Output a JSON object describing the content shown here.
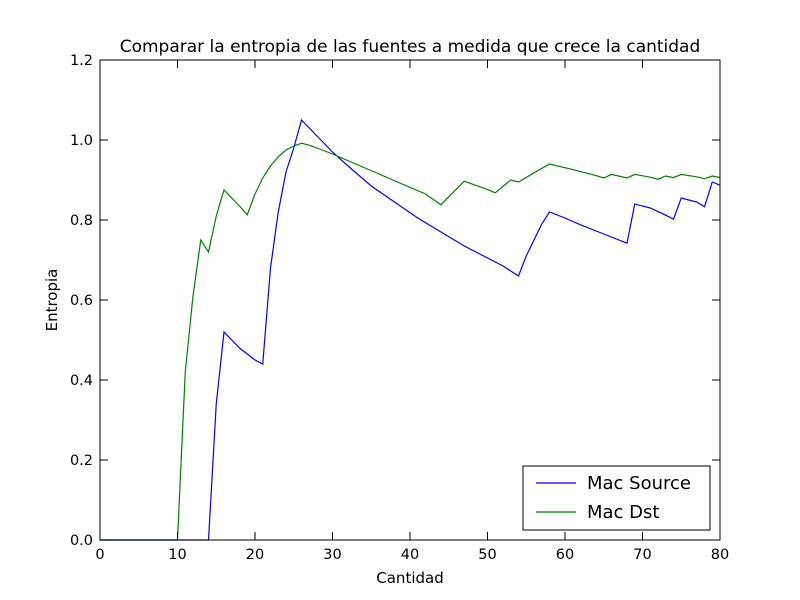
{
  "chart_data": {
    "type": "line",
    "title": "Comparar la entropia de las fuentes a medida que crece la cantidad",
    "xlabel": "Cantidad",
    "ylabel": "Entropia",
    "xlim": [
      0,
      80
    ],
    "ylim": [
      0,
      1.2
    ],
    "xticks": [
      {
        "value": 0,
        "label": "0"
      },
      {
        "value": 10,
        "label": "10"
      },
      {
        "value": 20,
        "label": "20"
      },
      {
        "value": 30,
        "label": "30"
      },
      {
        "value": 40,
        "label": "40"
      },
      {
        "value": 50,
        "label": "50"
      },
      {
        "value": 60,
        "label": "60"
      },
      {
        "value": 70,
        "label": "70"
      },
      {
        "value": 80,
        "label": "80"
      }
    ],
    "yticks": [
      {
        "value": 0,
        "label": "0.0"
      },
      {
        "value": 0.2,
        "label": "0.2"
      },
      {
        "value": 0.4,
        "label": "0.4"
      },
      {
        "value": 0.6,
        "label": "0.6"
      },
      {
        "value": 0.8,
        "label": "0.8"
      },
      {
        "value": 1.0,
        "label": "1.0"
      },
      {
        "value": 1.2,
        "label": "1.2"
      }
    ],
    "grid": false,
    "legend": "lower-right",
    "series": [
      {
        "name": "Mac Source",
        "color": "#0000ff",
        "points": [
          [
            0,
            0
          ],
          [
            14,
            0
          ],
          [
            15,
            0.34
          ],
          [
            16,
            0.52
          ],
          [
            17,
            0.5
          ],
          [
            18,
            0.48
          ],
          [
            19,
            0.465
          ],
          [
            20,
            0.45
          ],
          [
            21,
            0.44
          ],
          [
            22,
            0.68
          ],
          [
            23,
            0.82
          ],
          [
            24,
            0.92
          ],
          [
            25,
            0.98
          ],
          [
            26,
            1.05
          ],
          [
            27,
            1.03
          ],
          [
            28,
            1.01
          ],
          [
            29,
            0.99
          ],
          [
            30,
            0.97
          ],
          [
            32,
            0.935
          ],
          [
            35,
            0.885
          ],
          [
            38,
            0.845
          ],
          [
            41,
            0.805
          ],
          [
            44,
            0.77
          ],
          [
            47,
            0.735
          ],
          [
            50,
            0.705
          ],
          [
            52,
            0.685
          ],
          [
            54,
            0.66
          ],
          [
            55,
            0.71
          ],
          [
            56,
            0.75
          ],
          [
            57,
            0.79
          ],
          [
            58,
            0.82
          ],
          [
            60,
            0.805
          ],
          [
            62,
            0.788
          ],
          [
            65,
            0.765
          ],
          [
            68,
            0.742
          ],
          [
            69,
            0.84
          ],
          [
            71,
            0.83
          ],
          [
            73,
            0.812
          ],
          [
            74,
            0.802
          ],
          [
            75,
            0.855
          ],
          [
            77,
            0.845
          ],
          [
            78,
            0.833
          ],
          [
            79,
            0.895
          ],
          [
            80,
            0.887
          ]
        ]
      },
      {
        "name": "Mac Dst",
        "color": "#008000",
        "points": [
          [
            0,
            0
          ],
          [
            10,
            0
          ],
          [
            11,
            0.42
          ],
          [
            12,
            0.61
          ],
          [
            13,
            0.75
          ],
          [
            14,
            0.72
          ],
          [
            15,
            0.81
          ],
          [
            16,
            0.875
          ],
          [
            17,
            0.855
          ],
          [
            18,
            0.835
          ],
          [
            19,
            0.813
          ],
          [
            20,
            0.865
          ],
          [
            21,
            0.905
          ],
          [
            22,
            0.935
          ],
          [
            23,
            0.958
          ],
          [
            24,
            0.975
          ],
          [
            25,
            0.985
          ],
          [
            26,
            0.992
          ],
          [
            27,
            0.987
          ],
          [
            28,
            0.98
          ],
          [
            30,
            0.965
          ],
          [
            33,
            0.94
          ],
          [
            36,
            0.915
          ],
          [
            39,
            0.89
          ],
          [
            42,
            0.865
          ],
          [
            44,
            0.838
          ],
          [
            45,
            0.858
          ],
          [
            47,
            0.897
          ],
          [
            50,
            0.876
          ],
          [
            51,
            0.868
          ],
          [
            53,
            0.9
          ],
          [
            54,
            0.895
          ],
          [
            56,
            0.918
          ],
          [
            58,
            0.94
          ],
          [
            61,
            0.926
          ],
          [
            64,
            0.911
          ],
          [
            65,
            0.905
          ],
          [
            66,
            0.914
          ],
          [
            68,
            0.905
          ],
          [
            69,
            0.914
          ],
          [
            71,
            0.907
          ],
          [
            72,
            0.902
          ],
          [
            73,
            0.91
          ],
          [
            74,
            0.906
          ],
          [
            75,
            0.914
          ],
          [
            77,
            0.908
          ],
          [
            78,
            0.903
          ],
          [
            79,
            0.91
          ],
          [
            80,
            0.906
          ]
        ]
      }
    ]
  }
}
